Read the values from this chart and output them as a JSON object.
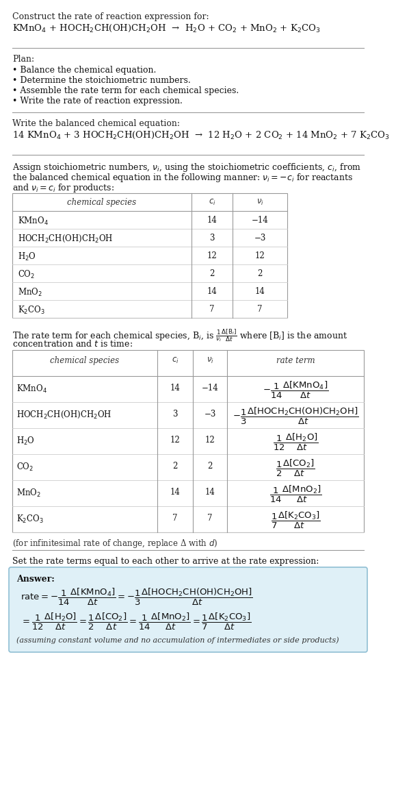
{
  "bg_color": "#ffffff",
  "title_line1": "Construct the rate of reaction expression for:",
  "title_eq": "KMnO$_4$ + HOCH$_2$CH(OH)CH$_2$OH  →  H$_2$O + CO$_2$ + MnO$_2$ + K$_2$CO$_3$",
  "plan_header": "Plan:",
  "plan_items": [
    "• Balance the chemical equation.",
    "• Determine the stoichiometric numbers.",
    "• Assemble the rate term for each chemical species.",
    "• Write the rate of reaction expression."
  ],
  "balanced_header": "Write the balanced chemical equation:",
  "balanced_eq": "14 KMnO$_4$ + 3 HOCH$_2$CH(OH)CH$_2$OH  →  12 H$_2$O + 2 CO$_2$ + 14 MnO$_2$ + 7 K$_2$CO$_3$",
  "assign_text1": "Assign stoichiometric numbers, $\\nu_i$, using the stoichiometric coefficients, $c_i$, from",
  "assign_text2": "the balanced chemical equation in the following manner: $\\nu_i = -c_i$ for reactants",
  "assign_text3": "and $\\nu_i = c_i$ for products:",
  "table1_headers": [
    "chemical species",
    "$c_i$",
    "$\\nu_i$"
  ],
  "table1_rows": [
    [
      "KMnO$_4$",
      "14",
      "−14"
    ],
    [
      "HOCH$_2$CH(OH)CH$_2$OH",
      "3",
      "−3"
    ],
    [
      "H$_2$O",
      "12",
      "12"
    ],
    [
      "CO$_2$",
      "2",
      "2"
    ],
    [
      "MnO$_2$",
      "14",
      "14"
    ],
    [
      "K$_2$CO$_3$",
      "7",
      "7"
    ]
  ],
  "rate_text1": "The rate term for each chemical species, B$_i$, is $\\frac{1}{\\nu_i}\\frac{\\Delta[\\mathrm{B}_i]}{\\Delta t}$ where [B$_i$] is the amount",
  "rate_text2": "concentration and $t$ is time:",
  "table2_headers": [
    "chemical species",
    "$c_i$",
    "$\\nu_i$",
    "rate term"
  ],
  "table2_rows": [
    [
      "KMnO$_4$",
      "14",
      "−14",
      "$-\\dfrac{1}{14}\\dfrac{\\Delta[\\mathrm{KMnO_4}]}{\\Delta t}$"
    ],
    [
      "HOCH$_2$CH(OH)CH$_2$OH",
      "3",
      "−3",
      "$-\\dfrac{1}{3}\\dfrac{\\Delta[\\mathrm{HOCH_2CH(OH)CH_2OH}]}{\\Delta t}$"
    ],
    [
      "H$_2$O",
      "12",
      "12",
      "$\\dfrac{1}{12}\\dfrac{\\Delta[\\mathrm{H_2O}]}{\\Delta t}$"
    ],
    [
      "CO$_2$",
      "2",
      "2",
      "$\\dfrac{1}{2}\\dfrac{\\Delta[\\mathrm{CO_2}]}{\\Delta t}$"
    ],
    [
      "MnO$_2$",
      "14",
      "14",
      "$\\dfrac{1}{14}\\dfrac{\\Delta[\\mathrm{MnO_2}]}{\\Delta t}$"
    ],
    [
      "K$_2$CO$_3$",
      "7",
      "7",
      "$\\dfrac{1}{7}\\dfrac{\\Delta[\\mathrm{K_2CO_3}]}{\\Delta t}$"
    ]
  ],
  "infinitesimal_note": "(for infinitesimal rate of change, replace Δ with $d$)",
  "set_rate_text": "Set the rate terms equal to each other to arrive at the rate expression:",
  "answer_box_color": "#dff0f7",
  "answer_box_border": "#90bfd4",
  "answer_label": "Answer:",
  "answer_line1": "$\\mathrm{rate} = -\\dfrac{1}{14}\\dfrac{\\Delta[\\mathrm{KMnO_4}]}{\\Delta t} = -\\dfrac{1}{3}\\dfrac{\\Delta[\\mathrm{HOCH_2CH(OH)CH_2OH}]}{\\Delta t}$",
  "answer_line2": "$= \\dfrac{1}{12}\\dfrac{\\Delta[\\mathrm{H_2O}]}{\\Delta t} = \\dfrac{1}{2}\\dfrac{\\Delta[\\mathrm{CO_2}]}{\\Delta t} = \\dfrac{1}{14}\\dfrac{\\Delta[\\mathrm{MnO_2}]}{\\Delta t} = \\dfrac{1}{7}\\dfrac{\\Delta[\\mathrm{K_2CO_3}]}{\\Delta t}$",
  "answer_note": "(assuming constant volume and no accumulation of intermediates or side products)"
}
